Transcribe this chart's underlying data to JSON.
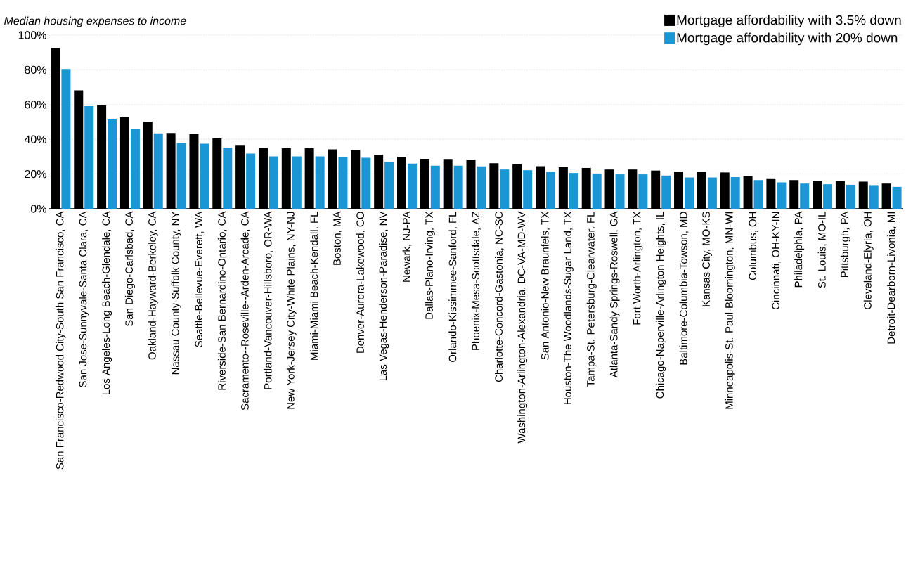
{
  "chart_data": {
    "type": "bar",
    "ylabel": "Median housing expenses to income",
    "categories": [
      "San Francisco-Redwood City-South San Francisco, CA",
      "San Jose-Sunnyvale-Santa Clara, CA",
      "Los Angeles-Long Beach-Glendale, CA",
      "San Diego-Carlsbad, CA",
      "Oakland-Hayward-Berkeley, CA",
      "Nassau County-Suffolk County, NY",
      "Seattle-Bellevue-Everett, WA",
      "Riverside-San Bernardino-Ontario, CA",
      "Sacramento--Roseville--Arden-Arcade, CA",
      "Portland-Vancouver-Hillsboro, OR-WA",
      "New York-Jersey City-White Plains, NY-NJ",
      "Miami-Miami Beach-Kendall, FL",
      "Boston, MA",
      "Denver-Aurora-Lakewood, CO",
      "Las Vegas-Henderson-Paradise, NV",
      "Newark, NJ-PA",
      "Dallas-Plano-Irving, TX",
      "Orlando-Kissimmee-Sanford, FL",
      "Phoenix-Mesa-Scottsdale, AZ",
      "Charlotte-Concord-Gastonia, NC-SC",
      "Washington-Arlington-Alexandria, DC-VA-MD-WV",
      "San Antonio-New Braunfels, TX",
      "Houston-The Woodlands-Sugar Land, TX",
      "Tampa-St. Petersburg-Clearwater, FL",
      "Atlanta-Sandy Springs-Roswell, GA",
      "Fort Worth-Arlington, TX",
      "Chicago-Naperville-Arlington Heights, IL",
      "Baltimore-Columbia-Towson, MD",
      "Kansas City, MO-KS",
      "Minneapolis-St. Paul-Bloomington, MN-WI",
      "Columbus, OH",
      "Cincinnati, OH-KY-IN",
      "Philadelphia, PA",
      "St. Louis, MO-IL",
      "Pittsburgh, PA",
      "Cleveland-Elyria, OH",
      "Detroit-Dearborn-Livonia, MI"
    ],
    "series": [
      {
        "name": "Mortgage affordability with 3.5% down",
        "color": "#000000",
        "values": [
          92.7,
          68.2,
          59.6,
          52.6,
          50.1,
          43.6,
          43.0,
          40.5,
          36.7,
          35.0,
          34.8,
          34.8,
          34.2,
          33.8,
          31.1,
          30.0,
          28.7,
          28.6,
          28.2,
          26.2,
          25.6,
          24.5,
          23.9,
          23.5,
          22.6,
          22.6,
          22.0,
          21.3,
          21.3,
          20.9,
          18.8,
          17.5,
          16.5,
          16.1,
          16.0,
          15.6,
          14.5
        ]
      },
      {
        "name": "Mortgage affordability with 20% down",
        "color": "#1a96d4",
        "values": [
          80.5,
          59.1,
          51.8,
          45.7,
          43.4,
          37.9,
          37.4,
          35.1,
          31.8,
          30.2,
          30.2,
          30.2,
          29.7,
          29.4,
          27.0,
          26.0,
          24.8,
          24.8,
          24.4,
          22.6,
          22.2,
          21.3,
          20.6,
          20.3,
          19.8,
          19.8,
          19.1,
          18.0,
          18.0,
          18.2,
          16.5,
          15.2,
          14.5,
          14.1,
          13.8,
          13.6,
          12.6
        ]
      }
    ],
    "ylim": [
      0,
      100
    ],
    "yticks": [
      {
        "value": 0,
        "label": "0%"
      },
      {
        "value": 20,
        "label": "20%"
      },
      {
        "value": 40,
        "label": "40%"
      },
      {
        "value": 60,
        "label": "60%"
      },
      {
        "value": 80,
        "label": "80%"
      },
      {
        "value": 100,
        "label": "100%"
      }
    ],
    "grid": "y",
    "legend": "top right"
  }
}
